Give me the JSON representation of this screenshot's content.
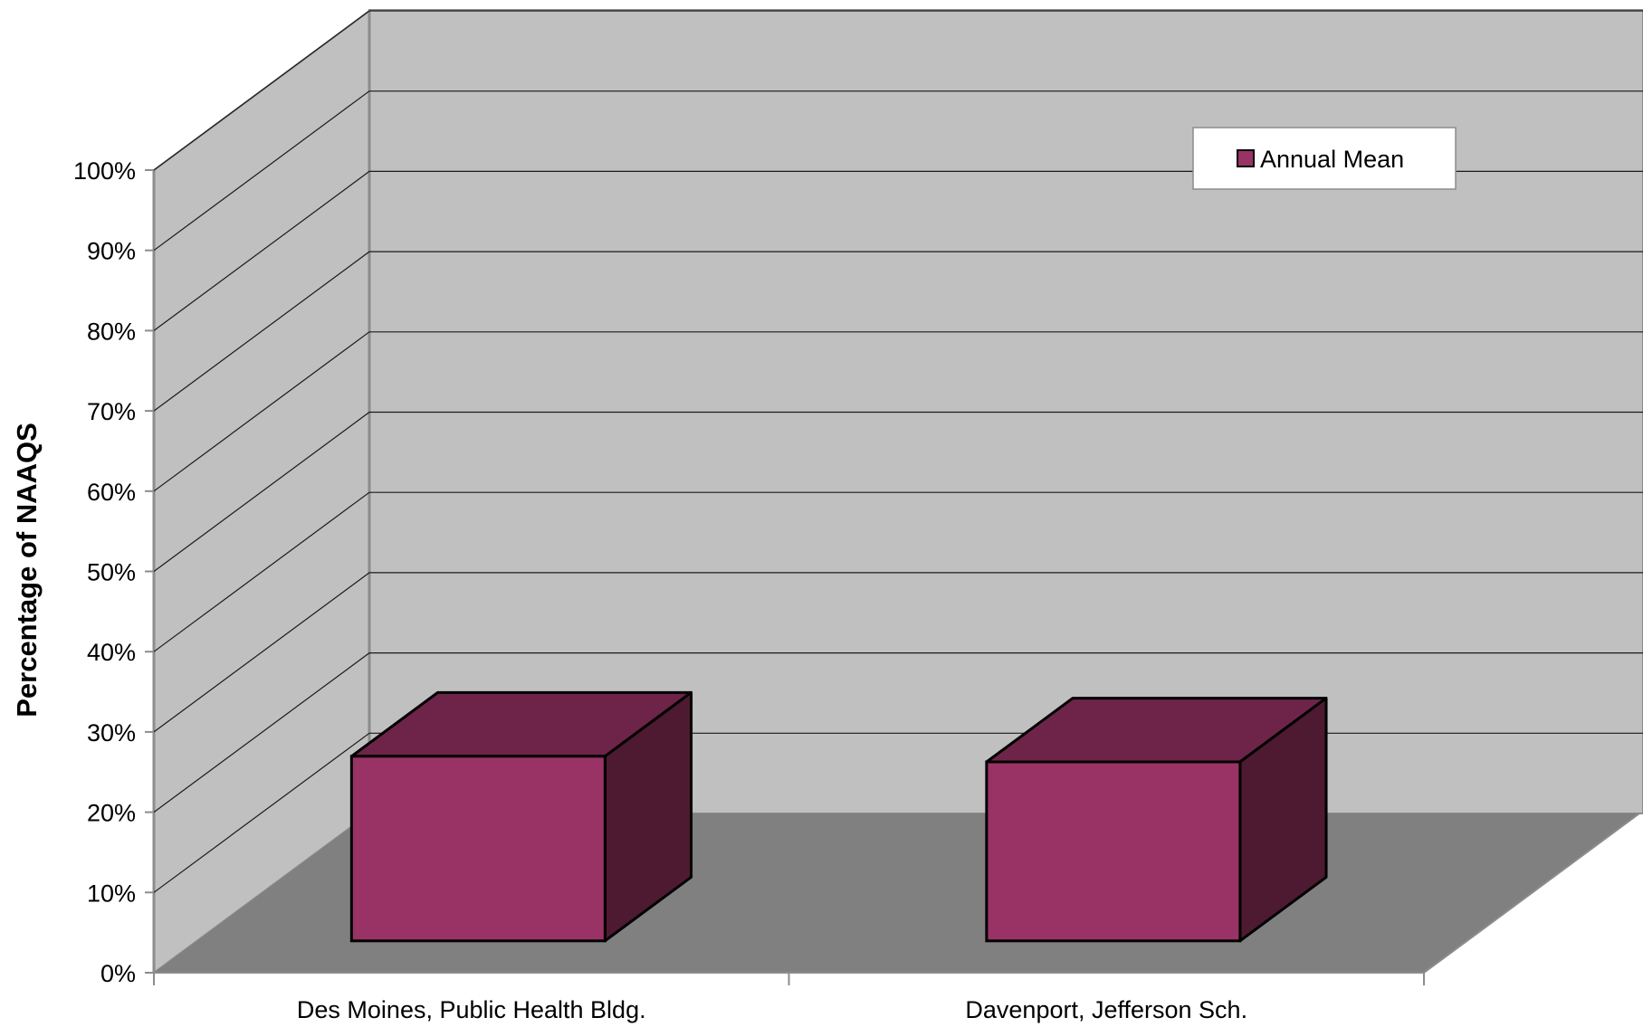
{
  "chart_data": {
    "type": "bar",
    "categories": [
      "Des Moines, Public Health Bldg.",
      "Davenport, Jefferson Sch."
    ],
    "series": [
      {
        "name": "Annual Mean",
        "values": [
          23,
          22.3
        ]
      }
    ],
    "ylabel": "Percentage of NAAQS",
    "ylim": [
      0,
      100
    ],
    "yticks": [
      "0%",
      "10%",
      "20%",
      "30%",
      "40%",
      "50%",
      "60%",
      "70%",
      "80%",
      "90%",
      "100%"
    ],
    "grid": true,
    "three_d": true,
    "legend_position": "top-right",
    "colors": {
      "bar_front": "#993366",
      "bar_top": "#6e2448",
      "bar_side": "#4d1a31",
      "back_wall": "#c0c0c0",
      "side_wall": "#c0c0c0",
      "floor": "#808080"
    }
  }
}
